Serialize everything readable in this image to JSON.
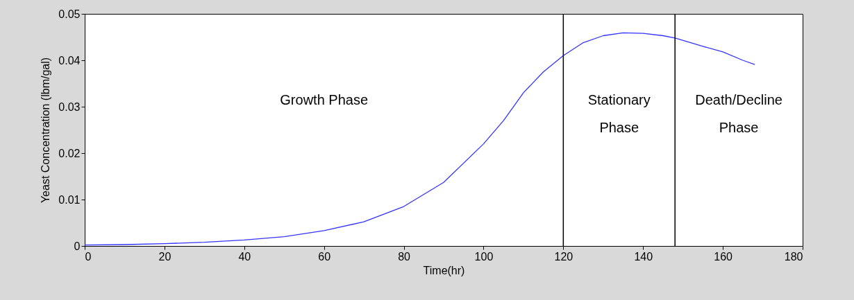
{
  "chart_data": {
    "type": "line",
    "xlabel": "Time(hr)",
    "ylabel": "Yeast Concentration (lbm/gal)",
    "x": [
      0,
      10,
      20,
      30,
      40,
      50,
      60,
      70,
      80,
      90,
      100,
      105,
      110,
      115,
      120,
      125,
      130,
      135,
      140,
      145,
      148,
      155,
      160,
      165,
      168
    ],
    "series": [
      {
        "color": "#3333ff",
        "values": [
          0.0002,
          0.0003,
          0.0005,
          0.0008,
          0.0013,
          0.002,
          0.0033,
          0.0052,
          0.0085,
          0.0137,
          0.022,
          0.027,
          0.033,
          0.0375,
          0.041,
          0.0438,
          0.0453,
          0.0459,
          0.0458,
          0.0453,
          0.0448,
          0.043,
          0.0418,
          0.04,
          0.0391
        ]
      }
    ],
    "xlim": [
      0,
      180
    ],
    "xticks": [
      0,
      20,
      40,
      60,
      80,
      100,
      120,
      140,
      160,
      180
    ],
    "ylim": [
      0,
      0.05
    ],
    "yticks": [
      0,
      0.01,
      0.02,
      0.03,
      0.04,
      0.05
    ],
    "ref_lines": [
      {
        "axis": "x",
        "value": 120,
        "color": "#000000"
      },
      {
        "axis": "x",
        "value": 148,
        "color": "#000000"
      }
    ],
    "annotations": [
      "Growth Phase",
      "Stationary\nPhase",
      "Death/Decline\nPhase"
    ],
    "grid": false,
    "marker": "none",
    "line_style": "solid"
  }
}
